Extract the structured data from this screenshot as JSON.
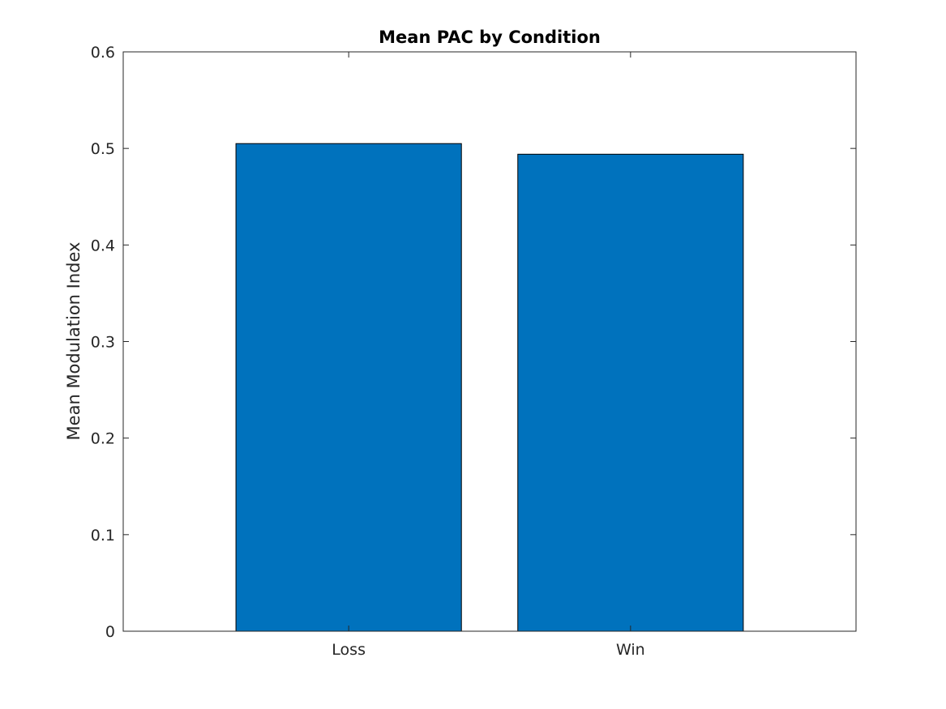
{
  "chart_data": {
    "type": "bar",
    "title": "Mean PAC by Condition",
    "xlabel": "",
    "ylabel": "Mean Modulation Index",
    "categories": [
      "Loss",
      "Win"
    ],
    "values": [
      0.505,
      0.494
    ],
    "ylim": [
      0,
      0.6
    ],
    "yticks": [
      "0",
      "0.1",
      "0.2",
      "0.3",
      "0.4",
      "0.5",
      "0.6"
    ],
    "ytick_values": [
      0,
      0.1,
      0.2,
      0.3,
      0.4,
      0.5,
      0.6
    ],
    "xlim": [
      0.2,
      2.8
    ],
    "grid": false,
    "bar_color": "#0072BD",
    "bar_edge_color": "#000000"
  }
}
